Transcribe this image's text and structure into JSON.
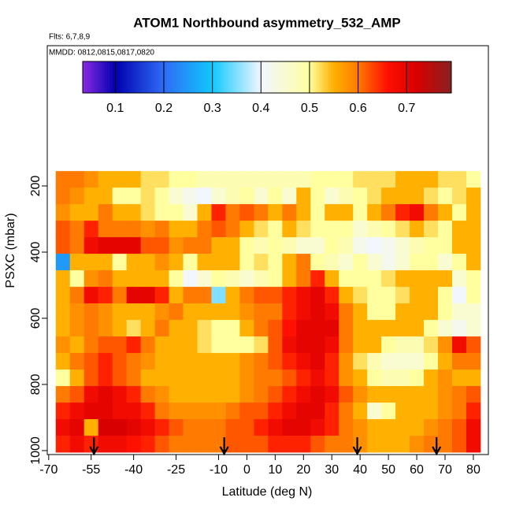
{
  "chart_data": {
    "type": "heatmap",
    "title": "ATOM1 Northbound asymmetry_532_AMP",
    "subtitle": "Flts: 6,7,8,9",
    "annotation": "MMDD: 0812,0815,0817,0820",
    "x_label": "Latitude (deg N)",
    "y_label": "PSXC (mbar)",
    "xlim": [
      -70.5,
      85.3
    ],
    "ylim": [
      1012,
      -224
    ],
    "xticks": [
      -70,
      -55,
      -40,
      -25,
      -10,
      0,
      10,
      20,
      30,
      40,
      50,
      60,
      70,
      80
    ],
    "yticks": [
      200,
      400,
      600,
      800,
      1000
    ],
    "x": [
      -65,
      -60,
      -55,
      -50,
      -45,
      -40,
      -35,
      -30,
      -25,
      -20,
      -15,
      -10,
      -5,
      0,
      5,
      10,
      15,
      20,
      25,
      30,
      35,
      40,
      45,
      50,
      55,
      60,
      65,
      70,
      75,
      80
    ],
    "y": [
      180,
      230,
      280,
      330,
      380,
      430,
      480,
      530,
      580,
      630,
      680,
      730,
      780,
      830,
      880,
      930,
      980
    ],
    "cell_width": 5,
    "cell_height": 50,
    "z": [
      [
        0.6,
        0.6,
        0.58,
        0.55,
        0.55,
        0.55,
        0.52,
        0.52,
        0.5,
        0.5,
        0.48,
        0.48,
        0.48,
        0.48,
        0.48,
        0.48,
        0.48,
        0.48,
        0.5,
        0.5,
        0.5,
        0.52,
        0.52,
        0.52,
        0.55,
        0.55,
        0.55,
        0.52,
        0.52,
        0.5
      ],
      [
        0.6,
        0.58,
        0.55,
        0.55,
        0.5,
        0.5,
        0.52,
        0.5,
        0.45,
        0.42,
        0.4,
        0.45,
        0.48,
        0.5,
        0.45,
        0.5,
        0.45,
        0.55,
        0.5,
        0.45,
        0.48,
        0.5,
        0.52,
        0.55,
        0.55,
        0.55,
        0.52,
        0.5,
        0.52,
        0.55
      ],
      [
        0.58,
        0.55,
        0.55,
        0.6,
        0.55,
        0.55,
        0.52,
        0.5,
        0.5,
        0.45,
        0.55,
        0.65,
        0.6,
        0.62,
        0.6,
        0.55,
        0.6,
        0.55,
        0.5,
        0.55,
        0.55,
        0.5,
        0.55,
        0.6,
        0.65,
        0.68,
        0.6,
        0.55,
        0.5,
        0.55
      ],
      [
        0.62,
        0.6,
        0.65,
        0.6,
        0.6,
        0.6,
        0.58,
        0.6,
        0.55,
        0.55,
        0.6,
        0.62,
        0.6,
        0.55,
        0.52,
        0.5,
        0.55,
        0.52,
        0.5,
        0.5,
        0.5,
        0.45,
        0.48,
        0.5,
        0.52,
        0.55,
        0.52,
        0.5,
        0.55,
        0.55
      ],
      [
        0.62,
        0.6,
        0.68,
        0.7,
        0.7,
        0.7,
        0.62,
        0.62,
        0.58,
        0.6,
        0.6,
        0.55,
        0.55,
        0.5,
        0.48,
        0.5,
        0.48,
        0.45,
        0.45,
        0.5,
        0.48,
        0.42,
        0.4,
        0.42,
        0.45,
        0.48,
        0.5,
        0.5,
        0.55,
        0.55
      ],
      [
        0.25,
        0.55,
        0.55,
        0.55,
        0.5,
        0.55,
        0.55,
        0.58,
        0.55,
        0.5,
        0.55,
        0.55,
        0.55,
        0.5,
        0.52,
        0.5,
        0.55,
        0.6,
        0.5,
        0.48,
        0.45,
        0.5,
        0.45,
        0.42,
        0.45,
        0.5,
        0.5,
        0.45,
        0.5,
        0.55
      ],
      [
        0.55,
        0.5,
        0.58,
        0.6,
        0.55,
        0.55,
        0.55,
        0.55,
        0.5,
        0.4,
        0.45,
        0.5,
        0.48,
        0.45,
        0.48,
        0.5,
        0.55,
        0.6,
        0.65,
        0.55,
        0.5,
        0.5,
        0.5,
        0.52,
        0.55,
        0.55,
        0.55,
        0.55,
        0.45,
        0.5
      ],
      [
        0.55,
        0.6,
        0.68,
        0.65,
        0.6,
        0.7,
        0.7,
        0.65,
        0.55,
        0.6,
        0.6,
        0.35,
        0.55,
        0.6,
        0.62,
        0.62,
        0.65,
        0.68,
        0.7,
        0.65,
        0.55,
        0.52,
        0.5,
        0.5,
        0.52,
        0.55,
        0.55,
        0.5,
        0.4,
        0.5
      ],
      [
        0.55,
        0.58,
        0.6,
        0.58,
        0.55,
        0.55,
        0.55,
        0.58,
        0.6,
        0.55,
        0.55,
        0.55,
        0.55,
        0.58,
        0.6,
        0.6,
        0.65,
        0.68,
        0.7,
        0.68,
        0.6,
        0.55,
        0.5,
        0.5,
        0.55,
        0.55,
        0.55,
        0.5,
        0.45,
        0.45
      ],
      [
        0.55,
        0.58,
        0.6,
        0.58,
        0.55,
        0.52,
        0.55,
        0.6,
        0.55,
        0.55,
        0.52,
        0.5,
        0.5,
        0.55,
        0.6,
        0.62,
        0.66,
        0.7,
        0.7,
        0.7,
        0.6,
        0.55,
        0.55,
        0.55,
        0.55,
        0.55,
        0.5,
        0.45,
        0.42,
        0.45
      ],
      [
        0.58,
        0.55,
        0.6,
        0.62,
        0.62,
        0.65,
        0.6,
        0.55,
        0.55,
        0.55,
        0.52,
        0.5,
        0.5,
        0.5,
        0.52,
        0.62,
        0.68,
        0.7,
        0.7,
        0.68,
        0.6,
        0.55,
        0.55,
        0.5,
        0.48,
        0.48,
        0.52,
        0.58,
        0.68,
        0.62
      ],
      [
        0.55,
        0.6,
        0.62,
        0.65,
        0.62,
        0.6,
        0.58,
        0.55,
        0.55,
        0.55,
        0.55,
        0.55,
        0.55,
        0.58,
        0.6,
        0.62,
        0.65,
        0.68,
        0.7,
        0.65,
        0.58,
        0.52,
        0.48,
        0.45,
        0.45,
        0.45,
        0.5,
        0.55,
        0.6,
        0.6
      ],
      [
        0.5,
        0.55,
        0.62,
        0.65,
        0.62,
        0.6,
        0.55,
        0.55,
        0.55,
        0.55,
        0.55,
        0.55,
        0.55,
        0.58,
        0.6,
        0.6,
        0.62,
        0.65,
        0.68,
        0.65,
        0.58,
        0.55,
        0.5,
        0.48,
        0.48,
        0.5,
        0.55,
        0.58,
        0.55,
        0.55
      ],
      [
        0.6,
        0.62,
        0.68,
        0.7,
        0.68,
        0.65,
        0.6,
        0.58,
        0.55,
        0.55,
        0.55,
        0.55,
        0.55,
        0.58,
        0.6,
        0.62,
        0.65,
        0.68,
        0.7,
        0.68,
        0.62,
        0.58,
        0.55,
        0.55,
        0.55,
        0.55,
        0.55,
        0.58,
        0.6,
        0.62
      ],
      [
        0.65,
        0.68,
        0.7,
        0.7,
        0.68,
        0.68,
        0.65,
        0.6,
        0.58,
        0.58,
        0.58,
        0.58,
        0.6,
        0.62,
        0.62,
        0.65,
        0.68,
        0.7,
        0.7,
        0.65,
        0.6,
        0.55,
        0.45,
        0.5,
        0.55,
        0.55,
        0.55,
        0.58,
        0.6,
        0.65
      ],
      [
        0.68,
        0.7,
        0.55,
        0.72,
        0.72,
        0.7,
        0.68,
        0.65,
        0.62,
        0.6,
        0.6,
        0.6,
        0.62,
        0.62,
        0.65,
        0.68,
        0.7,
        0.7,
        0.68,
        0.65,
        0.6,
        0.58,
        0.55,
        0.55,
        0.55,
        0.55,
        0.58,
        0.6,
        0.62,
        0.68
      ],
      [
        0.65,
        0.68,
        0.65,
        0.68,
        0.68,
        0.66,
        0.65,
        0.62,
        0.6,
        0.6,
        0.6,
        0.6,
        0.62,
        0.62,
        0.62,
        0.65,
        0.65,
        0.65,
        0.62,
        0.6,
        0.6,
        0.58,
        0.55,
        0.55,
        0.55,
        0.58,
        0.6,
        0.6,
        0.62,
        0.68
      ]
    ],
    "clim": [
      0.033,
      0.792
    ],
    "colorbar_ticks": [
      0.1,
      0.2,
      0.3,
      0.4,
      0.5,
      0.6,
      0.7
    ],
    "colorscale": [
      [
        0.033,
        "#8a2be2"
      ],
      [
        0.1,
        "#0000b0"
      ],
      [
        0.2,
        "#2f6cf5"
      ],
      [
        0.3,
        "#10c8ff"
      ],
      [
        0.4,
        "#f2f6ff"
      ],
      [
        0.5,
        "#ffffa0"
      ],
      [
        0.55,
        "#ffb000"
      ],
      [
        0.6,
        "#ff7a00"
      ],
      [
        0.66,
        "#ff1000"
      ],
      [
        0.72,
        "#d80000"
      ],
      [
        0.792,
        "#8a2020"
      ]
    ],
    "arrows": [
      -54,
      -8,
      39,
      67
    ]
  }
}
